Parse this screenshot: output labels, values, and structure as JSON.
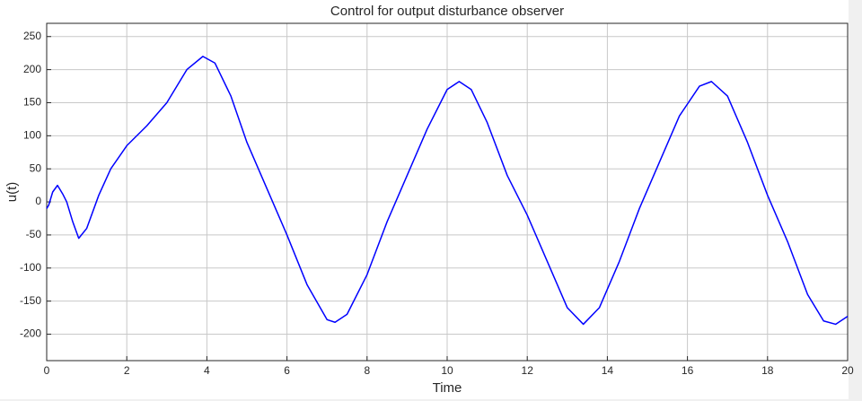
{
  "chart_data": {
    "type": "line",
    "title": "Control for output disturbance observer",
    "x_label": "Time",
    "y_label": "u(t)",
    "x": [
      0,
      0.05,
      0.15,
      0.27,
      0.4,
      0.5,
      0.65,
      0.8,
      1.0,
      1.3,
      1.6,
      2.0,
      2.5,
      3.0,
      3.5,
      3.9,
      4.2,
      4.6,
      5.0,
      5.5,
      6.0,
      6.5,
      7.0,
      7.2,
      7.5,
      8.0,
      8.5,
      9.0,
      9.5,
      10.0,
      10.3,
      10.6,
      11.0,
      11.5,
      12.0,
      12.5,
      13.0,
      13.4,
      13.8,
      14.3,
      14.8,
      15.3,
      15.8,
      16.3,
      16.6,
      17.0,
      17.5,
      18.0,
      18.5,
      19.0,
      19.4,
      19.7,
      20.0
    ],
    "series": [
      {
        "name": "u(t)",
        "color": "#0000ff",
        "values": [
          -10,
          -5,
          15,
          25,
          12,
          0,
          -30,
          -55,
          -40,
          10,
          50,
          85,
          115,
          150,
          200,
          220,
          210,
          160,
          90,
          20,
          -50,
          -125,
          -178,
          -182,
          -170,
          -110,
          -30,
          40,
          110,
          170,
          182,
          170,
          120,
          40,
          -20,
          -90,
          -160,
          -185,
          -160,
          -90,
          -10,
          60,
          130,
          175,
          182,
          160,
          90,
          10,
          -60,
          -140,
          -180,
          -185,
          -173
        ]
      }
    ],
    "xlim": [
      0,
      20
    ],
    "ylim": [
      -240,
      270
    ],
    "xticks": [
      0,
      2,
      4,
      6,
      8,
      10,
      12,
      14,
      16,
      18,
      20
    ],
    "yticks": [
      -200,
      -150,
      -100,
      -50,
      0,
      50,
      100,
      150,
      200,
      250
    ],
    "grid": true
  }
}
